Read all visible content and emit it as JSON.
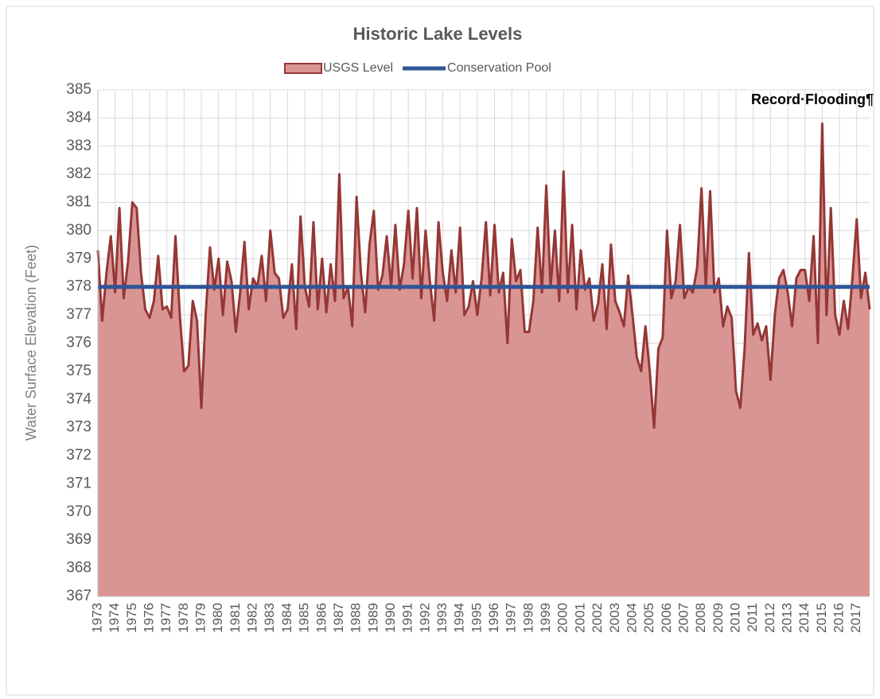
{
  "chart_data": {
    "type": "area",
    "title": "Historic Lake Levels",
    "y_label": "Water Surface Elevation (Feet)",
    "categories": [
      "1973",
      null,
      null,
      null,
      "1974",
      null,
      null,
      null,
      "1975",
      null,
      null,
      null,
      "1976",
      null,
      null,
      null,
      "1977",
      null,
      null,
      null,
      "1978",
      null,
      null,
      null,
      "1979",
      null,
      null,
      null,
      "1980",
      null,
      null,
      null,
      "1981",
      null,
      null,
      null,
      "1982",
      null,
      null,
      null,
      "1983",
      null,
      null,
      null,
      "1984",
      null,
      null,
      null,
      "1985",
      null,
      null,
      null,
      "1986",
      null,
      null,
      null,
      "1987",
      null,
      null,
      null,
      "1988",
      null,
      null,
      null,
      "1989",
      null,
      null,
      null,
      "1990",
      null,
      null,
      null,
      "1991",
      null,
      null,
      null,
      "1992",
      null,
      null,
      null,
      "1993",
      null,
      null,
      null,
      "1994",
      null,
      null,
      null,
      "1995",
      null,
      null,
      null,
      "1996",
      null,
      null,
      null,
      "1997",
      null,
      null,
      null,
      "1998",
      null,
      null,
      null,
      "1999",
      null,
      null,
      null,
      "2000",
      null,
      null,
      null,
      "2001",
      null,
      null,
      null,
      "2002",
      null,
      null,
      null,
      "2003",
      null,
      null,
      null,
      "2004",
      null,
      null,
      null,
      "2005",
      null,
      null,
      null,
      "2006",
      null,
      null,
      null,
      "2007",
      null,
      null,
      null,
      "2008",
      null,
      null,
      null,
      "2009",
      null,
      null,
      null,
      "2010",
      null,
      null,
      null,
      "2011",
      null,
      null,
      null,
      "2012",
      null,
      null,
      null,
      "2013",
      null,
      null,
      null,
      "2014",
      null,
      null,
      null,
      "2015",
      null,
      null,
      null,
      "2016",
      null,
      null,
      null,
      "2017",
      null,
      null,
      null
    ],
    "series": [
      {
        "name": "USGS Level",
        "color": "#953735",
        "fill": "#d99594",
        "values": [
          379.3,
          376.8,
          378.5,
          379.8,
          377.8,
          380.8,
          377.6,
          378.9,
          381.0,
          380.8,
          378.5,
          377.2,
          376.9,
          377.5,
          379.1,
          377.2,
          377.3,
          376.9,
          379.8,
          377.0,
          375.0,
          375.2,
          377.5,
          376.8,
          373.7,
          377.0,
          379.4,
          377.9,
          379.0,
          377.0,
          378.9,
          378.2,
          376.4,
          377.8,
          379.6,
          377.2,
          378.3,
          378.0,
          379.1,
          377.5,
          380.0,
          378.5,
          378.3,
          376.9,
          377.2,
          378.8,
          376.5,
          380.5,
          378.0,
          377.3,
          380.3,
          377.2,
          379.0,
          377.1,
          378.8,
          377.5,
          382.0,
          377.6,
          378.0,
          376.6,
          381.2,
          378.5,
          377.1,
          379.5,
          380.7,
          377.9,
          378.4,
          379.8,
          378.0,
          380.2,
          377.9,
          378.8,
          380.7,
          378.3,
          380.8,
          377.6,
          380.0,
          378.2,
          376.8,
          380.3,
          378.5,
          377.5,
          379.3,
          377.8,
          380.1,
          377.0,
          377.3,
          378.2,
          377.0,
          378.3,
          380.3,
          377.7,
          380.2,
          377.8,
          378.5,
          376.0,
          379.7,
          378.2,
          378.6,
          376.4,
          376.4,
          377.5,
          380.1,
          377.8,
          381.6,
          378.0,
          380.0,
          377.5,
          382.1,
          377.8,
          380.2,
          377.2,
          379.3,
          377.9,
          378.3,
          376.8,
          377.4,
          378.8,
          376.5,
          379.5,
          377.5,
          377.1,
          376.6,
          378.4,
          377.0,
          375.5,
          375.0,
          376.6,
          375.0,
          373.0,
          375.8,
          376.2,
          380.0,
          377.6,
          378.2,
          380.2,
          377.6,
          378.0,
          377.8,
          378.7,
          381.5,
          378.0,
          381.4,
          377.8,
          378.3,
          376.6,
          377.3,
          376.9,
          374.3,
          373.7,
          375.8,
          379.2,
          376.3,
          376.7,
          376.1,
          376.6,
          374.7,
          377.0,
          378.3,
          378.6,
          377.8,
          376.6,
          378.3,
          378.6,
          378.6,
          377.5,
          379.8,
          376.0,
          383.8,
          377.0,
          380.8,
          377.0,
          376.3,
          377.5,
          376.5,
          378.3,
          380.4,
          377.6,
          378.5,
          377.2
        ]
      }
    ],
    "reference_lines": [
      {
        "name": "Conservation Pool",
        "value": 378,
        "color": "#2f5597"
      }
    ],
    "annotations": [
      {
        "text": "Record·Flooding¶"
      }
    ],
    "ylim": [
      367,
      385
    ],
    "yticks": [
      367,
      368,
      369,
      370,
      371,
      372,
      373,
      374,
      375,
      376,
      377,
      378,
      379,
      380,
      381,
      382,
      383,
      384,
      385
    ],
    "grid": true
  }
}
